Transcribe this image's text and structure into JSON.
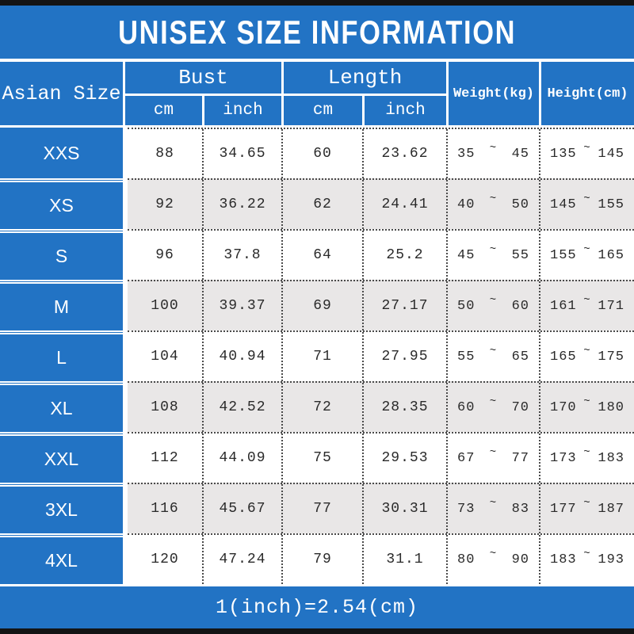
{
  "title": "UNISEX SIZE INFORMATION",
  "footer_note": "1(inch)=2.54(cm)",
  "tilde": "~",
  "colors": {
    "accent_blue": "#2273c4",
    "alt_row_gray": "#e9e7e7",
    "bar_black": "#141414",
    "text_dark": "#2a2a2a",
    "text_white": "#ffffff"
  },
  "header": {
    "asian_size": "Asian Size",
    "bust": "Bust",
    "length": "Length",
    "cm": "cm",
    "inch": "inch",
    "weight": "Weight(kg)",
    "height": "Height(cm)"
  },
  "chart_data": {
    "type": "table",
    "title": "UNISEX SIZE INFORMATION",
    "column_groups": [
      {
        "label": "Bust",
        "subcolumns": [
          "cm",
          "inch"
        ]
      },
      {
        "label": "Length",
        "subcolumns": [
          "cm",
          "inch"
        ]
      }
    ],
    "columns": [
      "Asian Size",
      "Bust cm",
      "Bust inch",
      "Length cm",
      "Length inch",
      "Weight(kg)",
      "Height(cm)"
    ],
    "rows": [
      {
        "size": "XXS",
        "bust_cm": "88",
        "bust_inch": "34.65",
        "length_cm": "60",
        "length_inch": "23.62",
        "weight": {
          "min": "35",
          "max": "45"
        },
        "height": {
          "min": "135",
          "max": "145"
        }
      },
      {
        "size": "XS",
        "bust_cm": "92",
        "bust_inch": "36.22",
        "length_cm": "62",
        "length_inch": "24.41",
        "weight": {
          "min": "40",
          "max": "50"
        },
        "height": {
          "min": "145",
          "max": "155"
        }
      },
      {
        "size": "S",
        "bust_cm": "96",
        "bust_inch": "37.8",
        "length_cm": "64",
        "length_inch": "25.2",
        "weight": {
          "min": "45",
          "max": "55"
        },
        "height": {
          "min": "155",
          "max": "165"
        }
      },
      {
        "size": "M",
        "bust_cm": "100",
        "bust_inch": "39.37",
        "length_cm": "69",
        "length_inch": "27.17",
        "weight": {
          "min": "50",
          "max": "60"
        },
        "height": {
          "min": "161",
          "max": "171"
        }
      },
      {
        "size": "L",
        "bust_cm": "104",
        "bust_inch": "40.94",
        "length_cm": "71",
        "length_inch": "27.95",
        "weight": {
          "min": "55",
          "max": "65"
        },
        "height": {
          "min": "165",
          "max": "175"
        }
      },
      {
        "size": "XL",
        "bust_cm": "108",
        "bust_inch": "42.52",
        "length_cm": "72",
        "length_inch": "28.35",
        "weight": {
          "min": "60",
          "max": "70"
        },
        "height": {
          "min": "170",
          "max": "180"
        }
      },
      {
        "size": "XXL",
        "bust_cm": "112",
        "bust_inch": "44.09",
        "length_cm": "75",
        "length_inch": "29.53",
        "weight": {
          "min": "67",
          "max": "77"
        },
        "height": {
          "min": "173",
          "max": "183"
        }
      },
      {
        "size": "3XL",
        "bust_cm": "116",
        "bust_inch": "45.67",
        "length_cm": "77",
        "length_inch": "30.31",
        "weight": {
          "min": "73",
          "max": "83"
        },
        "height": {
          "min": "177",
          "max": "187"
        }
      },
      {
        "size": "4XL",
        "bust_cm": "120",
        "bust_inch": "47.24",
        "length_cm": "79",
        "length_inch": "31.1",
        "weight": {
          "min": "80",
          "max": "90"
        },
        "height": {
          "min": "183",
          "max": "193"
        }
      }
    ]
  }
}
